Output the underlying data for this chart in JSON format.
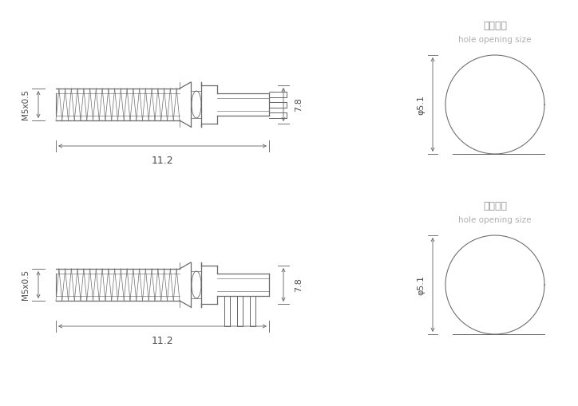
{
  "bg_color": "#ffffff",
  "line_color": "#6a6a6a",
  "dim_color": "#6a6a6a",
  "text_color": "#4a4a4a",
  "zh_color": "#909090",
  "en_color": "#b0b0b0",
  "fig_width": 7.24,
  "fig_height": 5.09,
  "dpi": 100,
  "thread_label": "M5x0.5",
  "length_label": "11.2",
  "height_label": "7.8",
  "phi_label": "φ5.1",
  "zh_label": "开孔尺寸",
  "en_label": "hole opening size"
}
